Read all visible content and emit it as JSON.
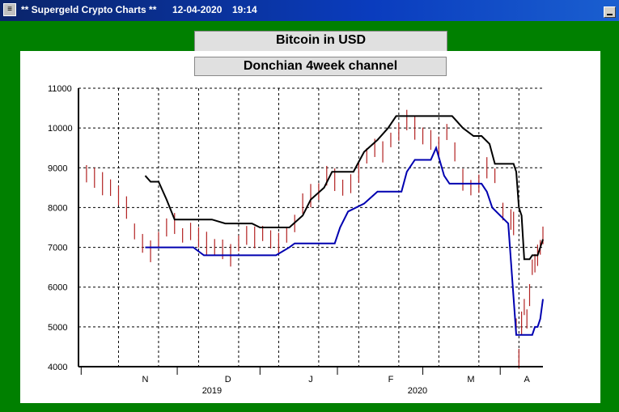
{
  "window": {
    "title": "** Supergeld Crypto Charts **",
    "date": "12-04-2020",
    "time": "19:14",
    "colors": {
      "titlebar": "#0a246a",
      "frame": "#008000",
      "panel": "#ffffff"
    }
  },
  "chart_data": {
    "type": "line",
    "title": "Bitcoin in USD",
    "subtitle": "Donchian 4week channel",
    "xlabel": "",
    "ylabel": "",
    "ylim": [
      4000,
      11000
    ],
    "yticks": [
      4000,
      5000,
      6000,
      7000,
      8000,
      9000,
      10000,
      11000
    ],
    "xlim": [
      "2019-10-21",
      "2020-04-12"
    ],
    "month_labels": [
      {
        "label": "N",
        "date": "2019-11-15"
      },
      {
        "label": "D",
        "date": "2019-12-16"
      },
      {
        "label": "J",
        "date": "2020-01-16"
      },
      {
        "label": "F",
        "date": "2020-02-15"
      },
      {
        "label": "M",
        "date": "2020-03-16"
      },
      {
        "label": "A",
        "date": "2020-04-06"
      }
    ],
    "year_labels": [
      {
        "label": "2019",
        "date": "2019-12-10"
      },
      {
        "label": "2020",
        "date": "2020-02-25"
      }
    ],
    "grid": true,
    "series": [
      {
        "kind": "ohlc-bars",
        "color": "#b22222",
        "points": [
          [
            "2019-10-21",
            8800
          ],
          [
            "2019-10-24",
            8850
          ],
          [
            "2019-10-27",
            8750
          ],
          [
            "2019-10-30",
            8600
          ],
          [
            "2019-11-02",
            8500
          ],
          [
            "2019-11-05",
            8300
          ],
          [
            "2019-11-08",
            8000
          ],
          [
            "2019-11-11",
            7400
          ],
          [
            "2019-11-14",
            7100
          ],
          [
            "2019-11-17",
            6900
          ],
          [
            "2019-11-20",
            7200
          ],
          [
            "2019-11-23",
            7500
          ],
          [
            "2019-11-26",
            7600
          ],
          [
            "2019-11-29",
            7300
          ],
          [
            "2019-12-02",
            7400
          ],
          [
            "2019-12-05",
            7250
          ],
          [
            "2019-12-08",
            7100
          ],
          [
            "2019-12-11",
            7000
          ],
          [
            "2019-12-14",
            6950
          ],
          [
            "2019-12-17",
            6800
          ],
          [
            "2019-12-20",
            7100
          ],
          [
            "2019-12-23",
            7300
          ],
          [
            "2019-12-26",
            7250
          ],
          [
            "2019-12-29",
            7350
          ],
          [
            "2020-01-01",
            7200
          ],
          [
            "2020-01-04",
            7100
          ],
          [
            "2020-01-07",
            7300
          ],
          [
            "2020-01-10",
            7600
          ],
          [
            "2020-01-13",
            8100
          ],
          [
            "2020-01-16",
            8300
          ],
          [
            "2020-01-19",
            8400
          ],
          [
            "2020-01-22",
            8800
          ],
          [
            "2020-01-25",
            8700
          ],
          [
            "2020-01-28",
            8500
          ],
          [
            "2020-01-31",
            8600
          ],
          [
            "2020-02-03",
            8900
          ],
          [
            "2020-02-06",
            9300
          ],
          [
            "2020-02-09",
            9500
          ],
          [
            "2020-02-12",
            9400
          ],
          [
            "2020-02-15",
            9700
          ],
          [
            "2020-02-18",
            9900
          ],
          [
            "2020-02-21",
            10200
          ],
          [
            "2020-02-24",
            10000
          ],
          [
            "2020-02-27",
            9800
          ],
          [
            "2020-03-01",
            9700
          ],
          [
            "2020-03-04",
            9500
          ],
          [
            "2020-03-07",
            9900
          ],
          [
            "2020-03-10",
            9400
          ],
          [
            "2020-03-13",
            8700
          ],
          [
            "2020-03-16",
            8500
          ],
          [
            "2020-03-19",
            8600
          ],
          [
            "2020-03-22",
            9000
          ],
          [
            "2020-03-25",
            8800
          ],
          [
            "2020-03-28",
            7900
          ],
          [
            "2020-03-31",
            7700
          ],
          [
            "2020-04-01",
            7600
          ],
          [
            "2020-04-02",
            5000
          ],
          [
            "2020-04-03",
            4200
          ],
          [
            "2020-04-04",
            5100
          ],
          [
            "2020-04-05",
            5500
          ],
          [
            "2020-04-06",
            5200
          ],
          [
            "2020-04-07",
            5800
          ],
          [
            "2020-04-08",
            6500
          ],
          [
            "2020-04-09",
            6600
          ],
          [
            "2020-04-10",
            6800
          ],
          [
            "2020-04-11",
            7000
          ],
          [
            "2020-04-12",
            7300
          ]
        ]
      },
      {
        "kind": "upper-channel",
        "color": "#000000",
        "points": [
          [
            "2019-11-15",
            8800
          ],
          [
            "2019-11-17",
            8650
          ],
          [
            "2019-11-20",
            8650
          ],
          [
            "2019-11-23",
            8200
          ],
          [
            "2019-11-26",
            7700
          ],
          [
            "2019-12-01",
            7700
          ],
          [
            "2019-12-10",
            7700
          ],
          [
            "2019-12-15",
            7600
          ],
          [
            "2019-12-25",
            7600
          ],
          [
            "2019-12-28",
            7500
          ],
          [
            "2020-01-08",
            7500
          ],
          [
            "2020-01-13",
            7800
          ],
          [
            "2020-01-16",
            8200
          ],
          [
            "2020-01-21",
            8500
          ],
          [
            "2020-01-24",
            8900
          ],
          [
            "2020-02-01",
            8900
          ],
          [
            "2020-02-05",
            9400
          ],
          [
            "2020-02-10",
            9700
          ],
          [
            "2020-02-14",
            10000
          ],
          [
            "2020-02-17",
            10300
          ],
          [
            "2020-02-25",
            10300
          ],
          [
            "2020-03-09",
            10300
          ],
          [
            "2020-03-13",
            10000
          ],
          [
            "2020-03-17",
            9800
          ],
          [
            "2020-03-20",
            9800
          ],
          [
            "2020-03-23",
            9600
          ],
          [
            "2020-03-25",
            9100
          ],
          [
            "2020-04-01",
            9100
          ],
          [
            "2020-04-02",
            8900
          ],
          [
            "2020-04-03",
            8000
          ],
          [
            "2020-04-04",
            7800
          ],
          [
            "2020-04-05",
            6700
          ],
          [
            "2020-04-07",
            6700
          ],
          [
            "2020-04-08",
            6800
          ],
          [
            "2020-04-10",
            6800
          ],
          [
            "2020-04-12",
            7200
          ]
        ]
      },
      {
        "kind": "lower-channel",
        "color": "#0000b0",
        "points": [
          [
            "2019-11-15",
            7000
          ],
          [
            "2019-12-03",
            7000
          ],
          [
            "2019-12-05",
            6900
          ],
          [
            "2019-12-07",
            6800
          ],
          [
            "2019-12-28",
            6800
          ],
          [
            "2020-01-03",
            6800
          ],
          [
            "2020-01-08",
            7000
          ],
          [
            "2020-01-10",
            7100
          ],
          [
            "2020-01-25",
            7100
          ],
          [
            "2020-01-27",
            7500
          ],
          [
            "2020-01-30",
            7900
          ],
          [
            "2020-02-05",
            8100
          ],
          [
            "2020-02-10",
            8400
          ],
          [
            "2020-02-19",
            8400
          ],
          [
            "2020-02-21",
            8900
          ],
          [
            "2020-02-24",
            9200
          ],
          [
            "2020-03-01",
            9200
          ],
          [
            "2020-03-03",
            9500
          ],
          [
            "2020-03-06",
            8800
          ],
          [
            "2020-03-08",
            8600
          ],
          [
            "2020-03-20",
            8600
          ],
          [
            "2020-03-22",
            8400
          ],
          [
            "2020-03-24",
            8000
          ],
          [
            "2020-03-27",
            7800
          ],
          [
            "2020-03-30",
            7600
          ],
          [
            "2020-04-02",
            4800
          ],
          [
            "2020-04-06",
            4800
          ],
          [
            "2020-04-08",
            4800
          ],
          [
            "2020-04-09",
            5000
          ],
          [
            "2020-04-10",
            5000
          ],
          [
            "2020-04-11",
            5200
          ],
          [
            "2020-04-12",
            5700
          ]
        ]
      }
    ]
  }
}
